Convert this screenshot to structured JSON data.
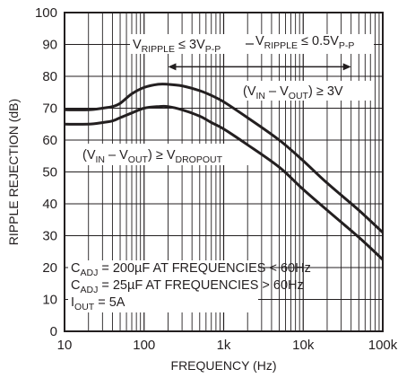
{
  "chart_data": {
    "type": "line",
    "title": "",
    "xlabel": "FREQUENCY (Hz)",
    "ylabel": "RIPPLE REJECTION (dB)",
    "x_scale": "log",
    "xlim": [
      10,
      100000
    ],
    "ylim": [
      0,
      100
    ],
    "grid": true,
    "x_ticks": [
      {
        "value": 10,
        "label": "10"
      },
      {
        "value": 100,
        "label": "100"
      },
      {
        "value": 1000,
        "label": "1k"
      },
      {
        "value": 10000,
        "label": "10k"
      },
      {
        "value": 100000,
        "label": "100k"
      }
    ],
    "y_ticks": [
      0,
      10,
      20,
      30,
      40,
      50,
      60,
      70,
      80,
      90,
      100
    ],
    "series": [
      {
        "x": [
          10,
          20,
          30,
          40,
          50,
          70,
          100,
          150,
          200,
          300,
          500,
          700,
          1000,
          2000,
          5000,
          10000,
          20000,
          50000,
          100000
        ],
        "y": [
          69.5,
          69.5,
          70,
          70.5,
          71.5,
          74.5,
          76.5,
          77.5,
          77.5,
          77,
          75.5,
          74,
          72,
          67,
          60,
          53.5,
          46.5,
          38,
          31
        ]
      },
      {
        "x": [
          10,
          20,
          30,
          40,
          50,
          70,
          100,
          150,
          200,
          300,
          500,
          700,
          1000,
          2000,
          5000,
          10000,
          20000,
          50000,
          100000
        ],
        "y": [
          65,
          65,
          65.5,
          66,
          67,
          68.5,
          70,
          70.5,
          70.5,
          69.5,
          67.5,
          65.5,
          63.5,
          58.5,
          51.5,
          44.5,
          38,
          29.5,
          22.5
        ]
      }
    ],
    "annotations": {
      "ripple_left": {
        "base": "V",
        "sub": "RIPPLE",
        "tail": " ≤ 3V",
        "tail_sub": "P-P"
      },
      "ripple_right": {
        "base": "V",
        "sub": "RIPPLE",
        "tail": " ≤ 0.5V",
        "tail_sub": "P-P"
      },
      "arrow_span": {
        "x_from": 200,
        "x_to": 40000,
        "y": 83
      },
      "vin_vout_3v": {
        "pre": "(V",
        "sub1": "IN",
        "mid": " – V",
        "sub2": "OUT",
        "tail": ") ≥ 3V"
      },
      "vin_vout_dropout": {
        "pre": "(V",
        "sub1": "IN",
        "mid": " – V",
        "sub2": "OUT",
        "tail": ") ≥ V",
        "sub3": "DROPOUT"
      },
      "cadj_1": {
        "base": "C",
        "sub": "ADJ",
        "tail": " = 200µF AT FREQUENCIES < 60Hz"
      },
      "cadj_2": {
        "base": "C",
        "sub": "ADJ",
        "tail": " = 25µF AT FREQUENCIES > 60Hz"
      },
      "iout": {
        "base": "I",
        "sub": "OUT",
        "tail": " = 5A"
      }
    },
    "colors": {
      "line": "#231f20",
      "grid": "#231f20",
      "background": "#ffffff"
    }
  }
}
